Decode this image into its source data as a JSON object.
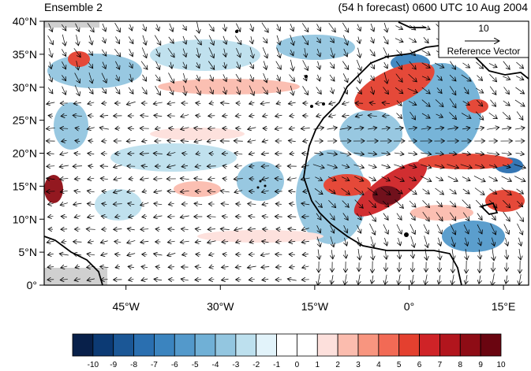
{
  "titles": {
    "left": "Ensemble 2",
    "right": "(54 h forecast) 0600 UTC 10 Aug 2004"
  },
  "map": {
    "lat_labels": [
      "40°N",
      "35°N",
      "30°N",
      "25°N",
      "20°N",
      "15°N",
      "10°N",
      "5°N",
      "0°"
    ],
    "lon_labels": [
      "45°W",
      "30°W",
      "15°W",
      "0°",
      "15°E"
    ],
    "lat_range": [
      0,
      40
    ],
    "lon_range": [
      -58,
      19
    ]
  },
  "reference_vector": {
    "value": "10",
    "label": "Reference Vector"
  },
  "colorbar": {
    "labels": [
      "-10",
      "-9",
      "-8",
      "-7",
      "-6",
      "-5",
      "-4",
      "-3",
      "-2",
      "-1",
      "0",
      "1",
      "2",
      "3",
      "4",
      "5",
      "6",
      "7",
      "8",
      "9",
      "10"
    ],
    "colors": [
      "#08204a",
      "#0c3a74",
      "#1b5796",
      "#2a6fb0",
      "#3b84bf",
      "#5399cb",
      "#70b0d6",
      "#93c6e0",
      "#bde0ee",
      "#e2f3fa",
      "#ffffff",
      "#ffffff",
      "#fde0dc",
      "#fbbcae",
      "#f8957f",
      "#f26a55",
      "#e4402f",
      "#cf2327",
      "#b2151d",
      "#8e0c15",
      "#6a0510"
    ]
  }
}
